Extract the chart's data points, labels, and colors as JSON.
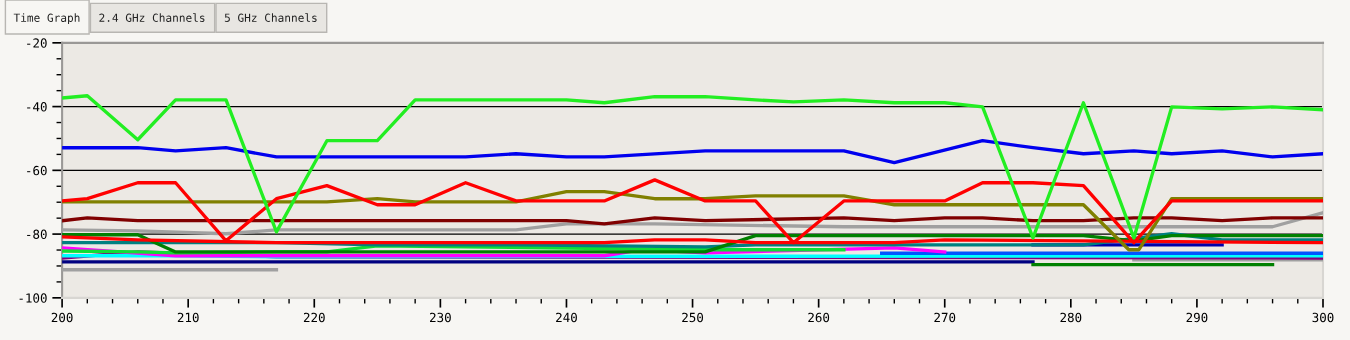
{
  "chart_data": {
    "type": "line",
    "annotations": [
      "Time Graph",
      "2.4 GHz Channels",
      "5 GHz Channels"
    ],
    "xlim": [
      200,
      300
    ],
    "ylim": [
      -100,
      -20
    ],
    "grid": "y",
    "marker": "none",
    "line_style": "solid",
    "xticks": [
      200,
      {
        "value": 202,
        "label": null
      },
      {
        "value": 204,
        "label": null
      },
      {
        "value": 206,
        "label": null
      },
      {
        "value": 208,
        "label": null
      },
      210,
      {
        "value": 212,
        "label": null
      },
      {
        "value": 214,
        "label": null
      },
      {
        "value": 216,
        "label": null
      },
      {
        "value": 218,
        "label": null
      },
      220,
      {
        "value": 222,
        "label": null
      },
      {
        "value": 224,
        "label": null
      },
      {
        "value": 226,
        "label": null
      },
      {
        "value": 228,
        "label": null
      },
      230,
      {
        "value": 232,
        "label": null
      },
      {
        "value": 234,
        "label": null
      },
      {
        "value": 236,
        "label": null
      },
      {
        "value": 238,
        "label": null
      },
      240,
      {
        "value": 242,
        "label": null
      },
      {
        "value": 244,
        "label": null
      },
      {
        "value": 246,
        "label": null
      },
      {
        "value": 248,
        "label": null
      },
      250,
      {
        "value": 252,
        "label": null
      },
      {
        "value": 254,
        "label": null
      },
      {
        "value": 256,
        "label": null
      },
      {
        "value": 258,
        "label": null
      },
      260,
      {
        "value": 262,
        "label": null
      },
      {
        "value": 264,
        "label": null
      },
      {
        "value": 266,
        "label": null
      },
      {
        "value": 268,
        "label": null
      },
      270,
      {
        "value": 272,
        "label": null
      },
      {
        "value": 274,
        "label": null
      },
      {
        "value": 276,
        "label": null
      },
      {
        "value": 278,
        "label": null
      },
      280,
      {
        "value": 282,
        "label": null
      },
      {
        "value": 284,
        "label": null
      },
      {
        "value": 286,
        "label": null
      },
      {
        "value": 288,
        "label": null
      },
      290,
      {
        "value": 292,
        "label": null
      },
      {
        "value": 294,
        "label": null
      },
      {
        "value": 296,
        "label": null
      },
      {
        "value": 298,
        "label": null
      },
      300
    ],
    "yticks": [
      -100,
      {
        "value": -95,
        "label": null
      },
      {
        "value": -90,
        "label": null
      },
      {
        "value": -85,
        "label": null
      },
      -80,
      {
        "value": -75,
        "label": null
      },
      {
        "value": -70,
        "label": null
      },
      {
        "value": -65,
        "label": null
      },
      -60,
      {
        "value": -55,
        "label": null
      },
      {
        "value": -50,
        "label": null
      },
      {
        "value": -45,
        "label": null
      },
      -40,
      {
        "value": -35,
        "label": null
      },
      {
        "value": -30,
        "label": null
      },
      {
        "value": -25,
        "label": null
      },
      -20
    ],
    "series": [
      {
        "color": "#a0a0a0",
        "x": [
          200,
          217
        ],
        "values": [
          -91.2,
          -91.2
        ]
      },
      {
        "color": "#000080",
        "x": [
          200,
          277
        ],
        "values": [
          -88.7,
          -88.7
        ]
      },
      {
        "color": "#008000",
        "x": [
          277,
          296
        ],
        "values": [
          -89.6,
          -89.6
        ]
      },
      {
        "color": "#a0a0a0",
        "x": [
          285,
          300
        ],
        "values": [
          -88.1,
          -88.1
        ]
      },
      {
        "color": "#800080",
        "x": [
          200,
          206,
          217,
          300
        ],
        "values": [
          -87.5,
          -85.6,
          -87.1,
          -87.5
        ]
      },
      {
        "color": "#00ffff",
        "x": [
          200,
          209,
          217,
          300
        ],
        "values": [
          -86.8,
          -86.8,
          -87.1,
          -86.8
        ]
      },
      {
        "color": "#0055ff",
        "x": [
          265,
          300
        ],
        "values": [
          -86.0,
          -86.0
        ]
      },
      {
        "color": "#ff00ff",
        "x": [
          200,
          209,
          243,
          246,
          251,
          266,
          270
        ],
        "values": [
          -84.3,
          -86.8,
          -86.8,
          -84.9,
          -85.9,
          -84.3,
          -85.6
        ]
      },
      {
        "color": "#0000aa",
        "x": [
          277,
          292
        ],
        "values": [
          -83.4,
          -83.4
        ]
      },
      {
        "color": "#11dd33",
        "x": [
          200,
          206,
          209,
          217,
          221,
          225,
          251,
          262
        ],
        "values": [
          -85.3,
          -85.6,
          -85.9,
          -85.6,
          -85.6,
          -83.7,
          -84.9,
          -84.9
        ]
      },
      {
        "color": "#008080",
        "x": [
          200,
          217,
          225,
          236,
          251,
          255,
          281,
          288,
          292,
          300
        ],
        "values": [
          -82.7,
          -82.7,
          -83.4,
          -83.4,
          -84.0,
          -83.4,
          -83.4,
          -79.9,
          -81.8,
          -81.8
        ]
      },
      {
        "color": "#008000",
        "x": [
          200,
          206,
          209,
          247,
          251,
          255,
          281,
          285,
          288,
          300
        ],
        "values": [
          -80.2,
          -80.2,
          -85.6,
          -85.6,
          -85.6,
          -80.5,
          -80.5,
          -82.1,
          -80.5,
          -80.5
        ]
      },
      {
        "color": "#ff0000",
        "x": [
          200,
          206,
          217,
          243,
          247,
          251,
          255,
          266,
          270,
          300
        ],
        "values": [
          -80.9,
          -81.8,
          -82.7,
          -82.7,
          -81.8,
          -81.8,
          -82.7,
          -82.7,
          -81.8,
          -82.7
        ]
      },
      {
        "color": "#a0a0a0",
        "x": [
          200,
          206,
          213,
          217,
          236,
          240,
          247,
          262,
          296,
          300
        ],
        "values": [
          -78.7,
          -79.0,
          -79.9,
          -78.7,
          -78.7,
          -76.8,
          -76.8,
          -77.7,
          -77.7,
          -73.3
        ]
      },
      {
        "color": "#800000",
        "x": [
          200,
          202,
          206,
          240,
          243,
          247,
          251,
          262,
          266,
          270,
          273,
          277,
          281,
          285,
          288,
          292,
          296,
          300
        ],
        "values": [
          -75.8,
          -74.9,
          -75.8,
          -75.8,
          -76.8,
          -74.9,
          -75.8,
          -74.9,
          -75.8,
          -74.9,
          -74.9,
          -75.8,
          -75.8,
          -74.9,
          -74.9,
          -75.8,
          -74.9,
          -74.9
        ]
      },
      {
        "color": "#808000",
        "x": [
          200,
          221,
          225,
          228,
          236,
          240,
          243,
          247,
          251,
          255,
          262,
          266,
          281,
          284.6,
          285.4,
          288,
          300
        ],
        "values": [
          -69.9,
          -69.9,
          -68.9,
          -69.9,
          -69.9,
          -66.7,
          -66.7,
          -68.9,
          -68.9,
          -68.0,
          -68.0,
          -70.8,
          -70.8,
          -84.9,
          -84.9,
          -68.9,
          -68.9
        ]
      },
      {
        "color": "#ff0000",
        "x": [
          200,
          202,
          206,
          209,
          213,
          217,
          221,
          225,
          228,
          232,
          236,
          243,
          247,
          251,
          255,
          258,
          262,
          270,
          273,
          277,
          281,
          285,
          288,
          300
        ],
        "values": [
          -69.6,
          -68.9,
          -63.9,
          -63.9,
          -82.1,
          -68.9,
          -64.8,
          -70.8,
          -70.8,
          -63.9,
          -69.6,
          -69.6,
          -63.0,
          -69.6,
          -69.6,
          -82.7,
          -69.6,
          -69.6,
          -63.9,
          -63.9,
          -64.8,
          -82.7,
          -69.6,
          -69.6
        ]
      },
      {
        "color": "#0000ee",
        "x": [
          200,
          206,
          209,
          213,
          217,
          232,
          236,
          240,
          243,
          251,
          262,
          266,
          273,
          277,
          281,
          285,
          288,
          292,
          296,
          300
        ],
        "values": [
          -52.9,
          -52.9,
          -53.9,
          -52.9,
          -55.8,
          -55.8,
          -54.8,
          -55.8,
          -55.8,
          -53.9,
          -53.9,
          -57.6,
          -50.7,
          -52.9,
          -54.8,
          -53.9,
          -54.8,
          -53.9,
          -55.8,
          -54.8
        ]
      },
      {
        "color": "#22ee22",
        "x": [
          200,
          202,
          206,
          209,
          213,
          217,
          221,
          225,
          228,
          240,
          243,
          247,
          251,
          255,
          258,
          262,
          266,
          270,
          273,
          277,
          281,
          285,
          288,
          292,
          296,
          300
        ],
        "values": [
          -37.3,
          -36.6,
          -50.4,
          -37.9,
          -37.9,
          -79.3,
          -50.7,
          -50.7,
          -37.9,
          -37.9,
          -38.8,
          -36.9,
          -36.9,
          -37.9,
          -38.5,
          -37.9,
          -38.8,
          -38.8,
          -40.1,
          -81.2,
          -38.8,
          -81.2,
          -40.1,
          -40.7,
          -40.1,
          -41.0
        ]
      }
    ]
  }
}
